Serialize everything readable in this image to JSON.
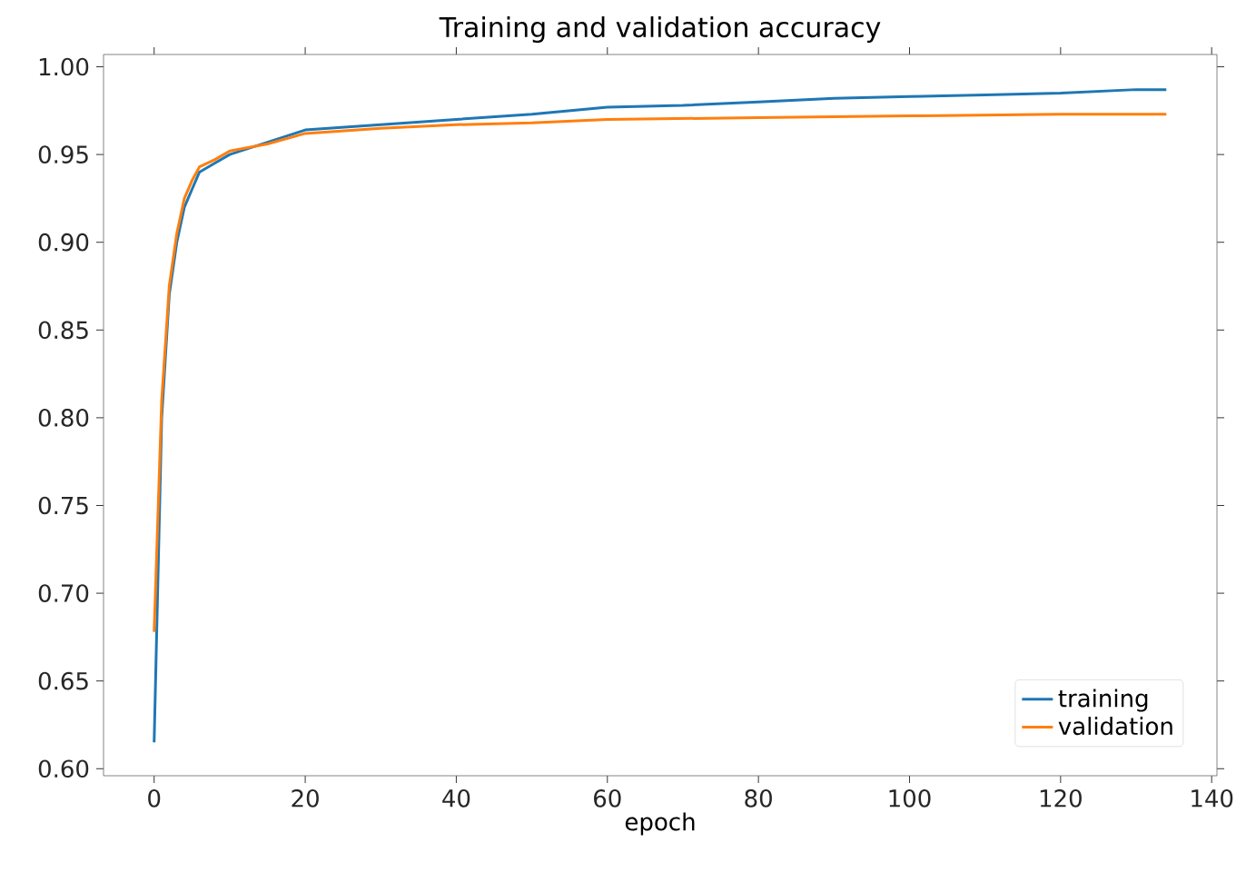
{
  "chart_data": {
    "type": "line",
    "title": "Training and validation accuracy",
    "xlabel": "epoch",
    "xlim": [
      -6.7,
      140.7
    ],
    "ylim": [
      0.596,
      1.007
    ],
    "xticks": [
      0,
      20,
      40,
      60,
      80,
      100,
      120,
      140
    ],
    "yticks": [
      {
        "value": 0.6,
        "label": "0.60"
      },
      {
        "value": 0.65,
        "label": "0.65"
      },
      {
        "value": 0.7,
        "label": "0.70"
      },
      {
        "value": 0.75,
        "label": "0.75"
      },
      {
        "value": 0.8,
        "label": "0.80"
      },
      {
        "value": 0.85,
        "label": "0.85"
      },
      {
        "value": 0.9,
        "label": "0.90"
      },
      {
        "value": 0.95,
        "label": "0.95"
      },
      {
        "value": 1.0,
        "label": "1.00"
      }
    ],
    "legend": "bottom right",
    "grid": false,
    "series": [
      {
        "name": "training",
        "color": "#1f77b4",
        "x": [
          0,
          1,
          2,
          3,
          4,
          5,
          6,
          8,
          10,
          15,
          20,
          30,
          40,
          50,
          60,
          70,
          80,
          90,
          100,
          110,
          120,
          130,
          134
        ],
        "values": [
          0.615,
          0.8,
          0.87,
          0.9,
          0.92,
          0.93,
          0.94,
          0.945,
          0.95,
          0.957,
          0.964,
          0.967,
          0.97,
          0.973,
          0.977,
          0.978,
          0.98,
          0.982,
          0.983,
          0.984,
          0.985,
          0.987,
          0.987
        ]
      },
      {
        "name": "validation",
        "color": "#ff7f0e",
        "x": [
          0,
          1,
          2,
          3,
          4,
          5,
          6,
          8,
          10,
          15,
          20,
          30,
          40,
          50,
          60,
          80,
          100,
          120,
          134
        ],
        "values": [
          0.678,
          0.81,
          0.875,
          0.905,
          0.925,
          0.935,
          0.943,
          0.947,
          0.952,
          0.956,
          0.962,
          0.965,
          0.967,
          0.968,
          0.97,
          0.971,
          0.972,
          0.973,
          0.973
        ]
      }
    ]
  }
}
